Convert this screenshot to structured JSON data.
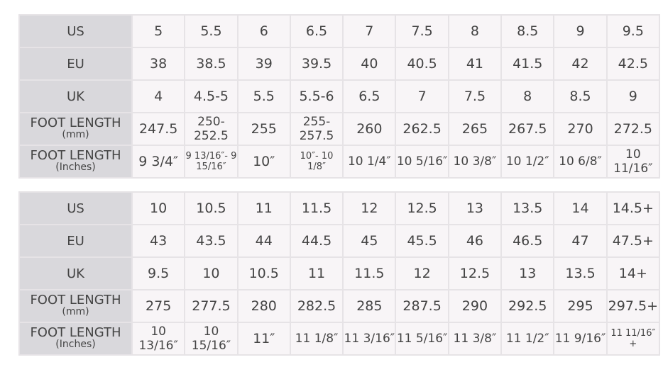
{
  "tables": [
    {
      "rows": [
        {
          "label": "US",
          "cells": [
            "5",
            "5.5",
            "6",
            "6.5",
            "7",
            "7.5",
            "8",
            "8.5",
            "9",
            "9.5"
          ]
        },
        {
          "label": "EU",
          "cells": [
            "38",
            "38.5",
            "39",
            "39.5",
            "40",
            "40.5",
            "41",
            "41.5",
            "42",
            "42.5"
          ]
        },
        {
          "label": "UK",
          "cells": [
            "4",
            "4.5-5",
            "5.5",
            "5.5-6",
            "6.5",
            "7",
            "7.5",
            "8",
            "8.5",
            "9"
          ]
        },
        {
          "label": "FOOT LENGTH",
          "sub": "(mm)",
          "cells": [
            "247.5",
            "250-252.5",
            "255",
            "255-257.5",
            "260",
            "262.5",
            "265",
            "267.5",
            "270",
            "272.5"
          ]
        },
        {
          "label": "FOOT LENGTH",
          "sub": "(Inches)",
          "cells": [
            "9 3/4″",
            "9 13/16″- 9 15/16″",
            "10″",
            "10″- 10 1/8″",
            "10 1/4″",
            "10 5/16″",
            "10 3/8″",
            "10 1/2″",
            "10 6/8″",
            "10 11/16″"
          ]
        }
      ]
    },
    {
      "rows": [
        {
          "label": "US",
          "cells": [
            "10",
            "10.5",
            "11",
            "11.5",
            "12",
            "12.5",
            "13",
            "13.5",
            "14",
            "14.5+"
          ]
        },
        {
          "label": "EU",
          "cells": [
            "43",
            "43.5",
            "44",
            "44.5",
            "45",
            "45.5",
            "46",
            "46.5",
            "47",
            "47.5+"
          ]
        },
        {
          "label": "UK",
          "cells": [
            "9.5",
            "10",
            "10.5",
            "11",
            "11.5",
            "12",
            "12.5",
            "13",
            "13.5",
            "14+"
          ]
        },
        {
          "label": "FOOT LENGTH",
          "sub": "(mm)",
          "cells": [
            "275",
            "277.5",
            "280",
            "282.5",
            "285",
            "287.5",
            "290",
            "292.5",
            "295",
            "297.5+"
          ]
        },
        {
          "label": "FOOT LENGTH",
          "sub": "(Inches)",
          "cells": [
            "10 13/16″",
            "10 15/16″",
            "11″",
            "11 1/8″",
            "11 3/16″",
            "11 5/16″",
            "11 3/8″",
            "11 1/2″",
            "11 9/16″",
            "11 11/16″+"
          ]
        }
      ]
    }
  ]
}
